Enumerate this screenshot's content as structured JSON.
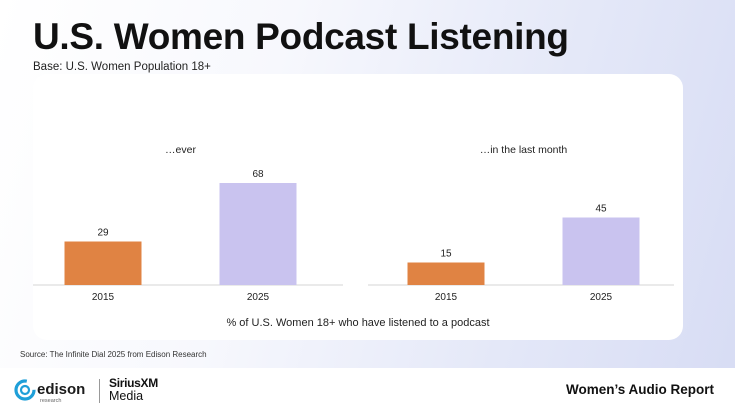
{
  "header": {
    "title": "U.S. Women Podcast Listening",
    "subtitle": "Base: U.S. Women Population 18+"
  },
  "chart_data": [
    {
      "type": "bar",
      "title": "…ever",
      "categories": [
        "2015",
        "2025"
      ],
      "values": [
        29,
        68
      ],
      "colors": [
        "#e08343",
        "#c9c3ef"
      ]
    },
    {
      "type": "bar",
      "title": "…in the last month",
      "categories": [
        "2015",
        "2025"
      ],
      "values": [
        15,
        45
      ],
      "colors": [
        "#e08343",
        "#c9c3ef"
      ]
    }
  ],
  "caption": "% of U.S. Women 18+ who have listened to a podcast",
  "source": "Source: The Infinite Dial 2025 from Edison Research",
  "footer": {
    "edison_logo": {
      "name": "edison",
      "sub": "research"
    },
    "siriusxm_logo": {
      "line1": "SiriusXM",
      "line2": "Media"
    },
    "report_title": "Women’s Audio Report"
  }
}
